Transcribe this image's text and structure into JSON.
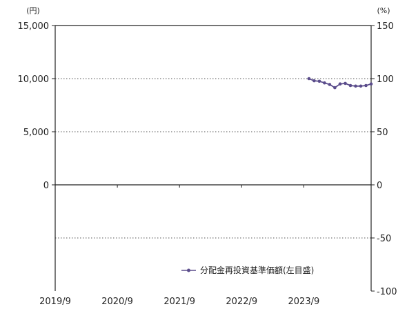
{
  "chart_data": {
    "type": "line",
    "left_axis_unit": "(円)",
    "right_axis_unit": "(%)",
    "x_ticks": [
      "2019/9",
      "2020/9",
      "2021/9",
      "2022/9",
      "2023/9"
    ],
    "x_range": [
      "2019/9",
      "2024/10"
    ],
    "left_yticks": [
      "15,000",
      "10,000",
      "5,000",
      "0"
    ],
    "left_ylim": [
      -10000,
      15000
    ],
    "right_yticks": [
      "150",
      "100",
      "50",
      "0",
      "-50",
      "-100"
    ],
    "right_ylim": [
      -100,
      150
    ],
    "grid": "dotted horizontal",
    "legend_position": "bottom-right",
    "series": [
      {
        "name": "分配金再投資基準価額(左目盛)",
        "axis": "left",
        "color": "#5b4d8c",
        "x": [
          "2023/10",
          "2023/11",
          "2023/12",
          "2024/1",
          "2024/2",
          "2024/3",
          "2024/4",
          "2024/5",
          "2024/6",
          "2024/7",
          "2024/8",
          "2024/9",
          "2024/10"
        ],
        "values": [
          10000,
          9800,
          9750,
          9600,
          9450,
          9150,
          9500,
          9550,
          9350,
          9300,
          9300,
          9350,
          9500
        ]
      }
    ]
  }
}
